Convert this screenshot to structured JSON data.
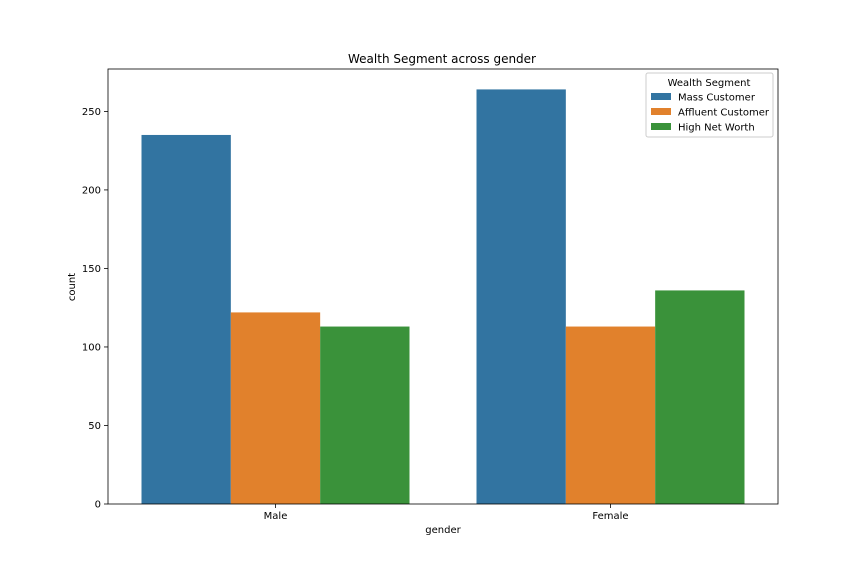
{
  "chart_data": {
    "type": "bar",
    "title": "Wealth Segment across gender",
    "xlabel": "gender",
    "ylabel": "count",
    "categories": [
      "Male",
      "Female"
    ],
    "series": [
      {
        "name": "Mass Customer",
        "color": "#3274a1",
        "values": [
          235,
          264
        ]
      },
      {
        "name": "Affluent Customer",
        "color": "#e1812c",
        "values": [
          122,
          113
        ]
      },
      {
        "name": "High Net Worth",
        "color": "#3a923a",
        "values": [
          113,
          136
        ]
      }
    ],
    "ylim": [
      0,
      277
    ],
    "yticks": [
      0,
      50,
      100,
      150,
      200,
      250
    ],
    "grid": false,
    "legend": {
      "title": "Wealth Segment",
      "placement": "top-right"
    }
  }
}
